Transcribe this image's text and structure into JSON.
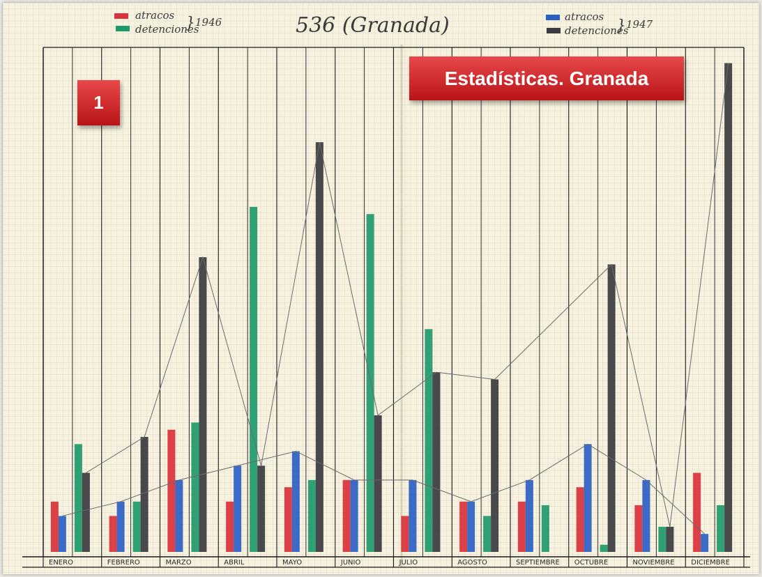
{
  "header": {
    "legend_1946": {
      "year": "1946",
      "items": [
        {
          "label": "atracos",
          "color": "#d8323a"
        },
        {
          "label": "detenciones",
          "color": "#1e9a6a"
        }
      ]
    },
    "title": "536 (Granada)",
    "legend_1947": {
      "year": "1947",
      "items": [
        {
          "label": "atracos",
          "color": "#2a5fc4"
        },
        {
          "label": "detenciones",
          "color": "#3a3a3e"
        }
      ]
    }
  },
  "overlay": {
    "title": "Estadísticas. Granada",
    "number": "1"
  },
  "colors": {
    "paper": "#f6f2df",
    "grid": "#b9b7a6",
    "ink": "#1a1a1a",
    "pencil": "#6a6a6a"
  },
  "chart_data": {
    "type": "bar",
    "title": "536 (Granada)",
    "categories": [
      "ENERO",
      "FEBRERO",
      "MARZO",
      "ABRIL",
      "MAYO",
      "JUNIO",
      "JULIO",
      "AGOSTO",
      "SEPTIEMBRE",
      "OCTUBRE",
      "NOVIEMBRE",
      "DICIEMBRE"
    ],
    "series": [
      {
        "name": "atracos 1946",
        "color": "#d8323a",
        "values": [
          7,
          5,
          17,
          7,
          9,
          10,
          5,
          7,
          7,
          9,
          6.5,
          11
        ]
      },
      {
        "name": "atracos 1947",
        "color": "#2a5fc4",
        "values": [
          5,
          7,
          10,
          12,
          14,
          10,
          10,
          7,
          10,
          15,
          10,
          2.5
        ]
      },
      {
        "name": "detenciones 1946",
        "color": "#1e9a6a",
        "values": [
          15,
          7,
          18,
          48,
          10,
          47,
          31,
          5,
          6.5,
          1,
          3.5,
          6.5
        ]
      },
      {
        "name": "detenciones 1947",
        "color": "#3a3a3e",
        "values": [
          11,
          16,
          41,
          12,
          57,
          19,
          25,
          24,
          0,
          40,
          3.5,
          68
        ]
      }
    ],
    "trend_lines": [
      "detenciones 1947",
      "atracos 1947"
    ],
    "ylim": [
      0,
      70
    ],
    "grid": true,
    "legend_position": "top"
  }
}
